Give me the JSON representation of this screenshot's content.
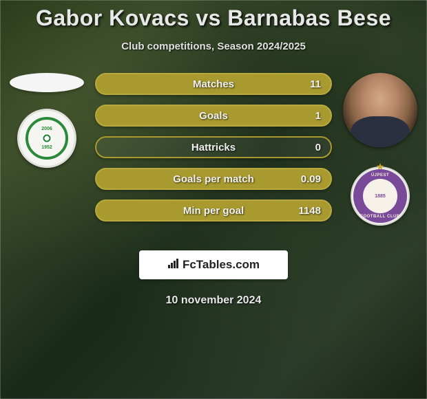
{
  "title": "Gabor Kovacs vs Barnabas Bese",
  "subtitle": "Club competitions, Season 2024/2025",
  "date": "10 november 2024",
  "watermark": "FcTables.com",
  "colors": {
    "bar_fill": "#a89a2e",
    "bar_border": "#b8aa3e",
    "empty_fill": "rgba(255,255,255,0.05)",
    "text": "#f0f0f0"
  },
  "players": {
    "left": {
      "name": "Gabor Kovacs",
      "club_badge_year_top": "2006",
      "club_badge_year_bottom": "1952"
    },
    "right": {
      "name": "Barnabas Bese",
      "club_badge_top": "ÚJPEST",
      "club_badge_bottom": "FOOTBALL CLUB",
      "club_badge_year": "1885"
    }
  },
  "stats": [
    {
      "label": "Matches",
      "right_value": "11",
      "left_pct": 0,
      "right_pct": 100
    },
    {
      "label": "Goals",
      "right_value": "1",
      "left_pct": 0,
      "right_pct": 100
    },
    {
      "label": "Hattricks",
      "right_value": "0",
      "left_pct": 0,
      "right_pct": 0
    },
    {
      "label": "Goals per match",
      "right_value": "0.09",
      "left_pct": 0,
      "right_pct": 100
    },
    {
      "label": "Min per goal",
      "right_value": "1148",
      "left_pct": 0,
      "right_pct": 100
    }
  ]
}
